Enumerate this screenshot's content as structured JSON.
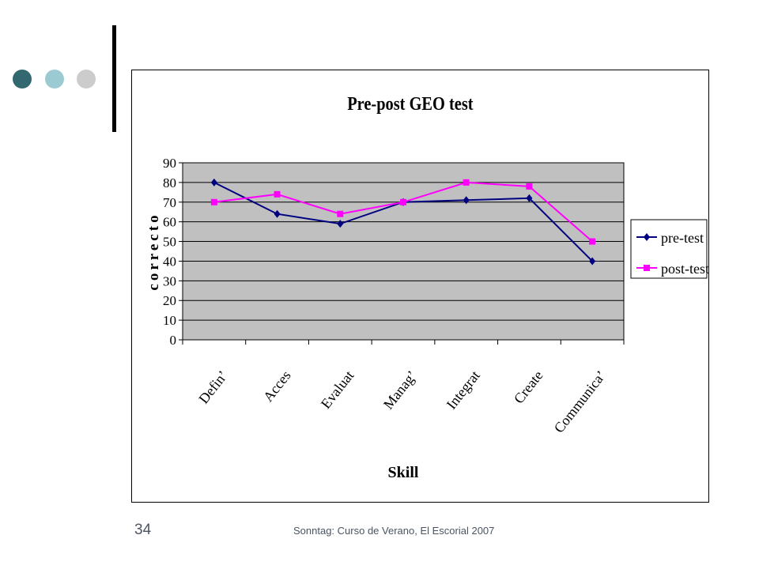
{
  "slide": {
    "dots": [
      {
        "name": "dot-dark",
        "color": "#346870"
      },
      {
        "name": "dot-light",
        "color": "#9ccad2"
      },
      {
        "name": "dot-gray",
        "color": "#cccccc"
      }
    ],
    "footer": "Sonntag: Curso de Verano, El Escorial 2007",
    "page_number": "34"
  },
  "chart_data": {
    "type": "line",
    "title": "Pre-post GEO test",
    "xlabel": "Skill",
    "ylabel": "correcto",
    "categories": [
      "Define",
      "Access",
      "Evaluate",
      "Manage",
      "Integrate",
      "Create",
      "Communicate"
    ],
    "category_labels_shown": [
      "Defin’",
      "Acces",
      "Evaluat",
      "Manag’",
      "Integrat",
      "Create",
      "Communica’"
    ],
    "ylim": [
      0,
      90
    ],
    "yticks": [
      0,
      10,
      20,
      30,
      40,
      50,
      60,
      70,
      80,
      90
    ],
    "grid": true,
    "plot_background": "#c0c0c0",
    "legend_position": "right",
    "series": [
      {
        "name": "pre-test",
        "color": "#000080",
        "marker": "diamond",
        "values": [
          80,
          64,
          59,
          70,
          71,
          72,
          40
        ]
      },
      {
        "name": "post-test",
        "color": "#ff00ff",
        "marker": "square",
        "values": [
          70,
          74,
          64,
          70,
          80,
          78,
          50
        ]
      }
    ]
  }
}
